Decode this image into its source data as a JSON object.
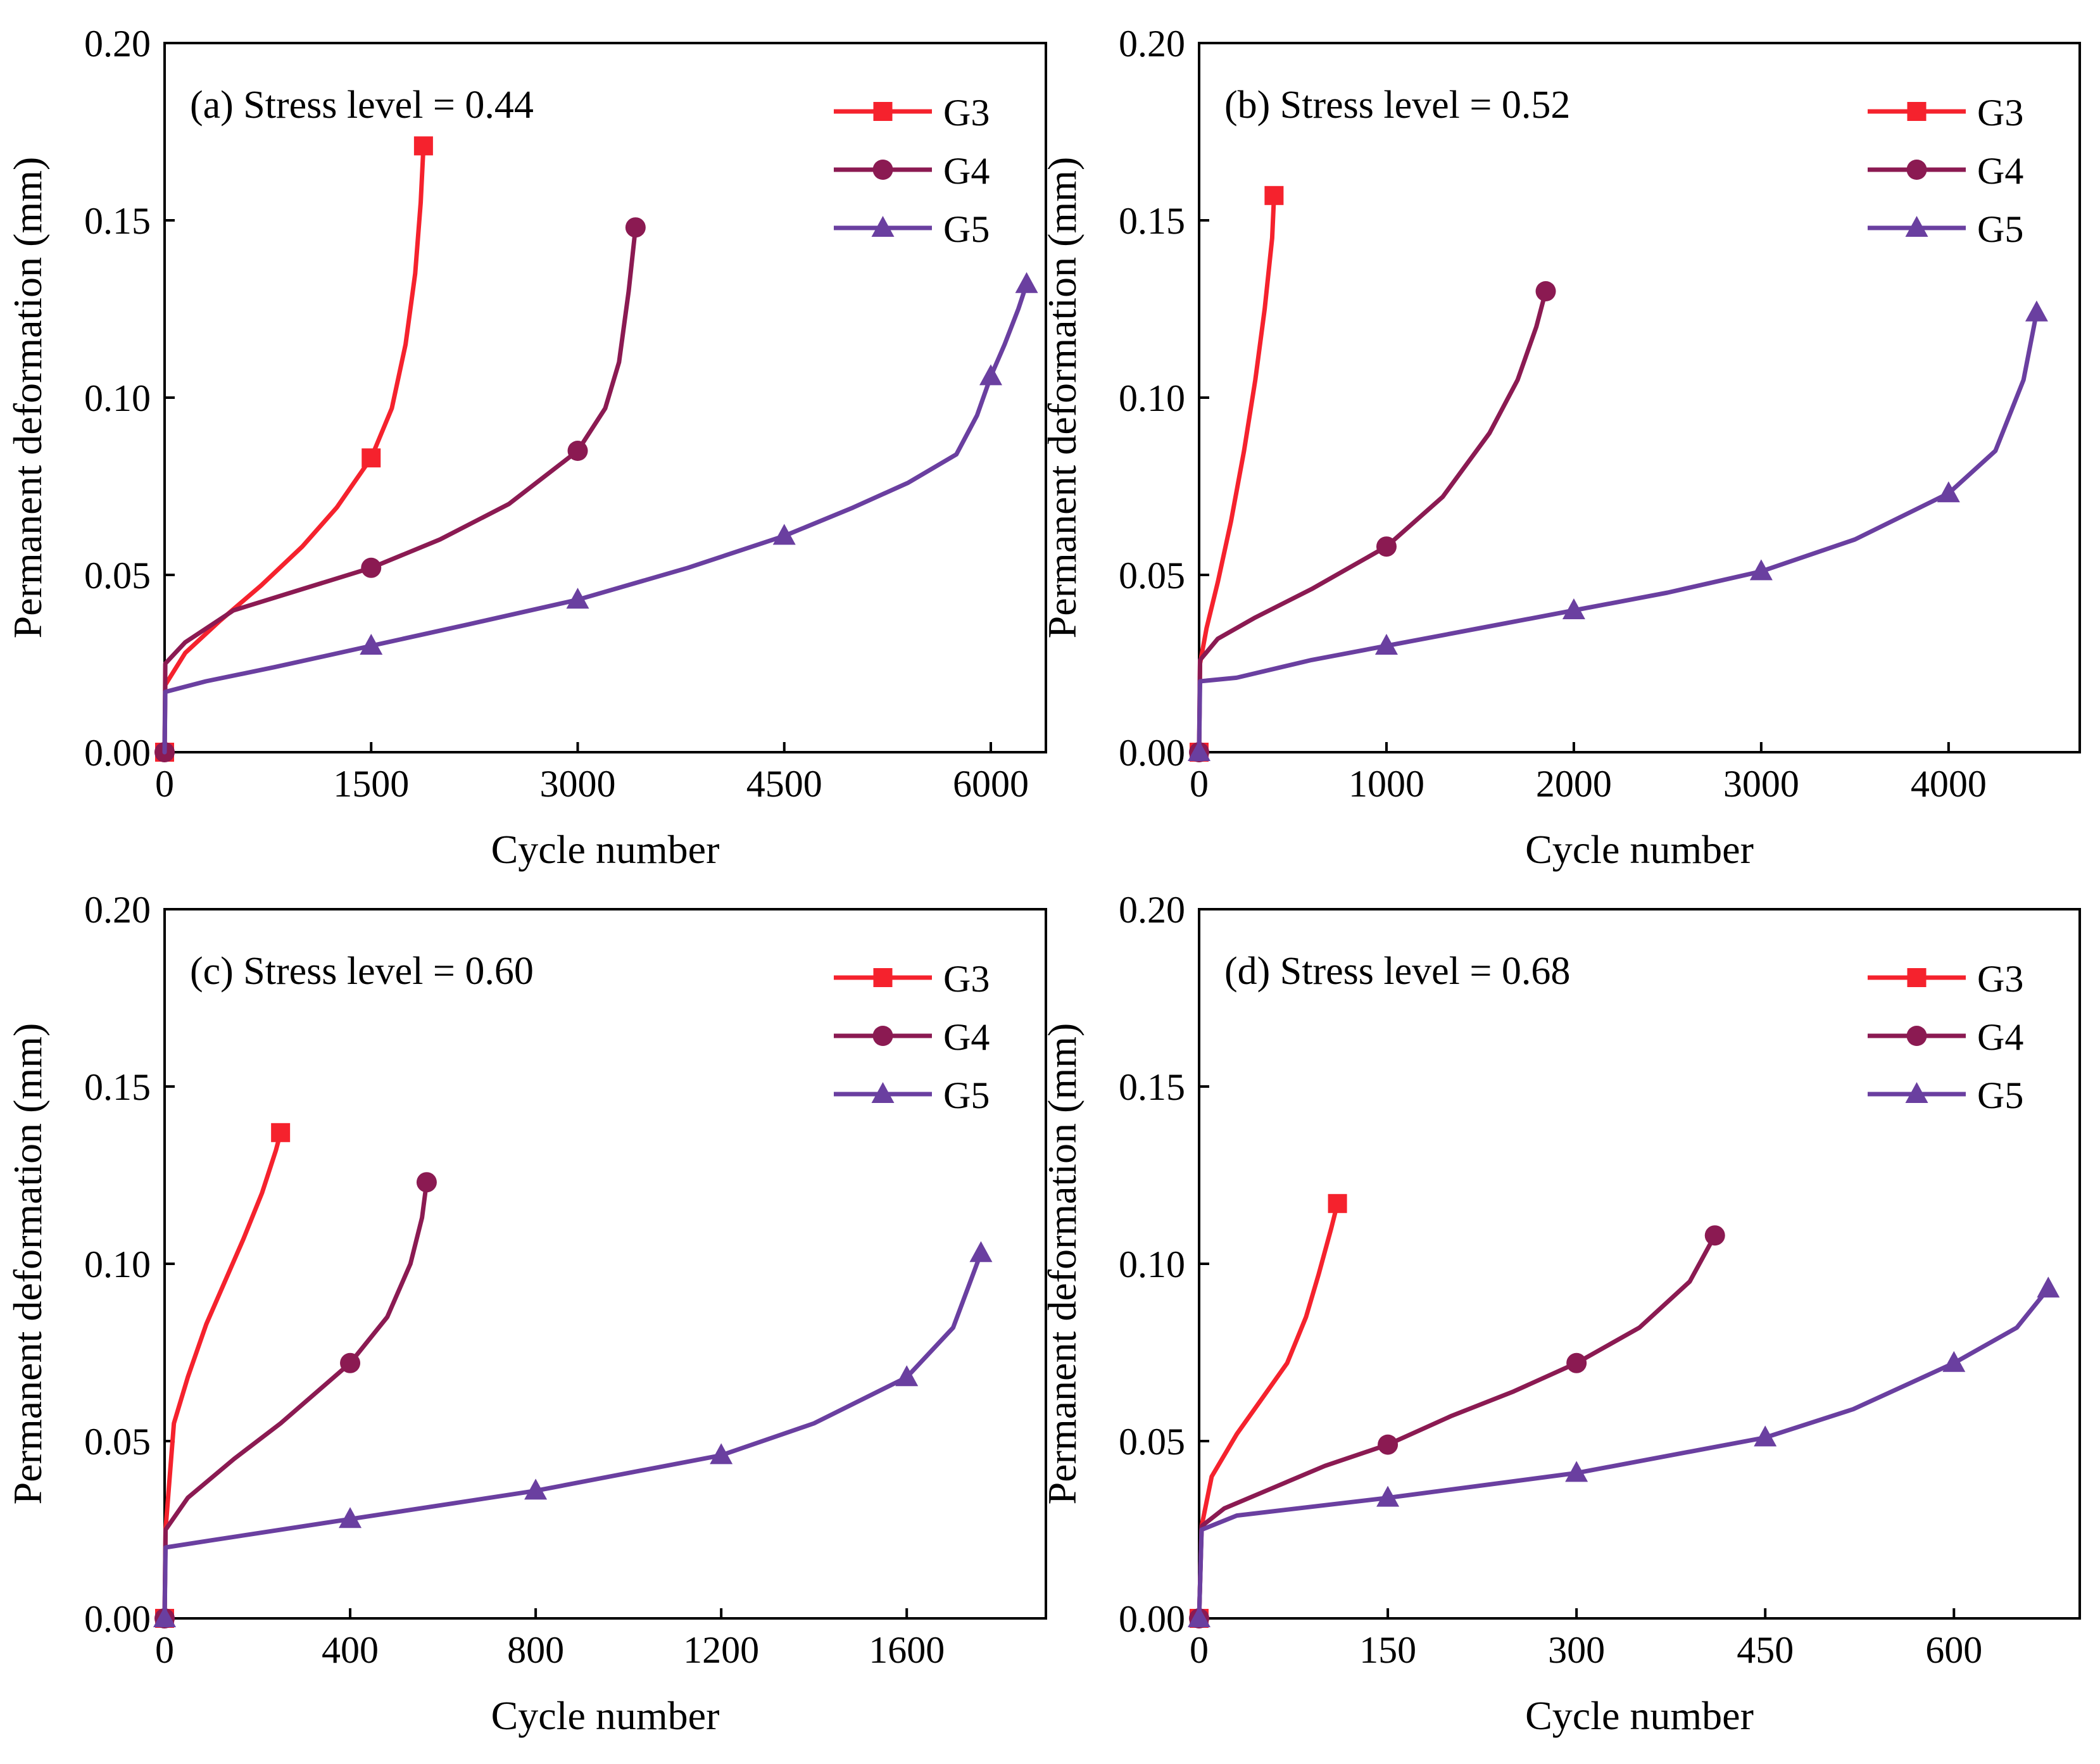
{
  "figure": {
    "series_colors": {
      "G3": "#f5222d",
      "G4": "#8b1a52",
      "G5": "#6a3fa0"
    },
    "series_markers": {
      "G3": "square",
      "G4": "circle",
      "G5": "triangle"
    }
  },
  "chart_data": [
    {
      "type": "line",
      "title": "(a) Stress level = 0.44",
      "xlabel": "Cycle number",
      "ylabel": "Permanent deformation (mm)",
      "xlim": [
        0,
        6400
      ],
      "ylim": [
        0,
        0.2
      ],
      "xticks": [
        0,
        1500,
        3000,
        4500,
        6000
      ],
      "xtick_labels": [
        "0",
        "1500",
        "3000",
        "4500",
        "6000"
      ],
      "yticks": [
        0,
        0.05,
        0.1,
        0.15,
        0.2
      ],
      "ytick_labels": [
        "0.00",
        "0.05",
        "0.10",
        "0.15",
        "0.20"
      ],
      "legend": "top-right",
      "series": [
        {
          "name": "G3",
          "x": [
            0,
            5,
            150,
            400,
            700,
            1000,
            1250,
            1500,
            1650,
            1750,
            1820,
            1860,
            1880
          ],
          "y": [
            0,
            0.019,
            0.028,
            0.037,
            0.047,
            0.058,
            0.069,
            0.083,
            0.097,
            0.115,
            0.135,
            0.155,
            0.171
          ],
          "markers_x": [
            0,
            1500,
            1880
          ],
          "markers_y": [
            0,
            0.083,
            0.171
          ]
        },
        {
          "name": "G4",
          "x": [
            0,
            5,
            150,
            500,
            1000,
            1500,
            2000,
            2500,
            3000,
            3200,
            3300,
            3370,
            3420
          ],
          "y": [
            0,
            0.025,
            0.031,
            0.04,
            0.046,
            0.052,
            0.06,
            0.07,
            0.085,
            0.097,
            0.11,
            0.13,
            0.148
          ],
          "markers_x": [
            0,
            1500,
            3000,
            3420
          ],
          "markers_y": [
            0,
            0.052,
            0.085,
            0.148
          ]
        },
        {
          "name": "G5",
          "x": [
            0,
            5,
            300,
            800,
            1500,
            2200,
            3000,
            3800,
            4500,
            5000,
            5400,
            5750,
            5900,
            6000,
            6100,
            6200,
            6260
          ],
          "y": [
            0,
            0.017,
            0.02,
            0.024,
            0.03,
            0.036,
            0.043,
            0.052,
            0.061,
            0.069,
            0.076,
            0.084,
            0.095,
            0.106,
            0.115,
            0.125,
            0.132
          ],
          "markers_x": [
            1500,
            3000,
            4500,
            6000,
            6260
          ],
          "markers_y": [
            0.03,
            0.043,
            0.061,
            0.106,
            0.132
          ]
        }
      ]
    },
    {
      "type": "line",
      "title": "(b) Stress level = 0.52",
      "xlabel": "Cycle number",
      "ylabel": "Permanent deformation (mm)",
      "xlim": [
        0,
        4700
      ],
      "ylim": [
        0,
        0.2
      ],
      "xticks": [
        0,
        1000,
        2000,
        3000,
        4000
      ],
      "xtick_labels": [
        "0",
        "1000",
        "2000",
        "3000",
        "4000"
      ],
      "yticks": [
        0,
        0.05,
        0.1,
        0.15,
        0.2
      ],
      "ytick_labels": [
        "0.00",
        "0.05",
        "0.10",
        "0.15",
        "0.20"
      ],
      "legend": "top-right",
      "series": [
        {
          "name": "G3",
          "x": [
            0,
            5,
            40,
            100,
            170,
            240,
            300,
            350,
            390,
            400
          ],
          "y": [
            0,
            0.025,
            0.035,
            0.048,
            0.065,
            0.085,
            0.105,
            0.125,
            0.145,
            0.157
          ],
          "markers_x": [
            0,
            400
          ],
          "markers_y": [
            0,
            0.157
          ]
        },
        {
          "name": "G4",
          "x": [
            0,
            5,
            100,
            300,
            600,
            1000,
            1300,
            1550,
            1700,
            1800,
            1850
          ],
          "y": [
            0,
            0.026,
            0.032,
            0.038,
            0.046,
            0.058,
            0.072,
            0.09,
            0.105,
            0.12,
            0.13
          ],
          "markers_x": [
            0,
            1000,
            1850
          ],
          "markers_y": [
            0,
            0.058,
            0.13
          ]
        },
        {
          "name": "G5",
          "x": [
            0,
            5,
            200,
            600,
            1000,
            1500,
            2000,
            2500,
            3000,
            3500,
            4000,
            4250,
            4400,
            4470
          ],
          "y": [
            0,
            0.02,
            0.021,
            0.026,
            0.03,
            0.035,
            0.04,
            0.045,
            0.051,
            0.06,
            0.073,
            0.085,
            0.105,
            0.124
          ],
          "markers_x": [
            0,
            1000,
            2000,
            3000,
            4000,
            4470
          ],
          "markers_y": [
            0,
            0.03,
            0.04,
            0.051,
            0.073,
            0.124
          ]
        }
      ]
    },
    {
      "type": "line",
      "title": "(c) Stress level = 0.60",
      "xlabel": "Cycle number",
      "ylabel": "Permanent deformation (mm)",
      "xlim": [
        0,
        1900
      ],
      "ylim": [
        0,
        0.2
      ],
      "xticks": [
        0,
        400,
        800,
        1200,
        1600
      ],
      "xtick_labels": [
        "0",
        "400",
        "800",
        "1200",
        "1600"
      ],
      "yticks": [
        0,
        0.05,
        0.1,
        0.15,
        0.2
      ],
      "ytick_labels": [
        "0.00",
        "0.05",
        "0.10",
        "0.15",
        "0.20"
      ],
      "legend": "top-right",
      "series": [
        {
          "name": "G3",
          "x": [
            0,
            2,
            20,
            50,
            90,
            130,
            170,
            210,
            240,
            250
          ],
          "y": [
            0,
            0.025,
            0.055,
            0.068,
            0.083,
            0.095,
            0.107,
            0.12,
            0.132,
            0.137
          ],
          "markers_x": [
            0,
            250
          ],
          "markers_y": [
            0,
            0.137
          ]
        },
        {
          "name": "G4",
          "x": [
            0,
            2,
            50,
            150,
            250,
            400,
            480,
            530,
            555,
            565
          ],
          "y": [
            0,
            0.025,
            0.034,
            0.045,
            0.055,
            0.072,
            0.085,
            0.1,
            0.113,
            0.123
          ],
          "markers_x": [
            0,
            400,
            565
          ],
          "markers_y": [
            0,
            0.072,
            0.123
          ]
        },
        {
          "name": "G5",
          "x": [
            0,
            2,
            100,
            400,
            800,
            1200,
            1400,
            1600,
            1700,
            1760
          ],
          "y": [
            0,
            0.02,
            0.022,
            0.028,
            0.036,
            0.046,
            0.055,
            0.068,
            0.082,
            0.103
          ],
          "markers_x": [
            0,
            400,
            800,
            1200,
            1600,
            1760
          ],
          "markers_y": [
            0,
            0.028,
            0.036,
            0.046,
            0.068,
            0.103
          ]
        }
      ]
    },
    {
      "type": "line",
      "title": "(d) Stress level = 0.68",
      "xlabel": "Cycle number",
      "ylabel": "Permanent deformation (mm)",
      "xlim": [
        0,
        700
      ],
      "ylim": [
        0,
        0.2
      ],
      "xticks": [
        0,
        150,
        300,
        450,
        600
      ],
      "xtick_labels": [
        "0",
        "150",
        "300",
        "450",
        "600"
      ],
      "yticks": [
        0,
        0.05,
        0.1,
        0.15,
        0.2
      ],
      "ytick_labels": [
        "0.00",
        "0.05",
        "0.10",
        "0.15",
        "0.20"
      ],
      "legend": "top-right",
      "series": [
        {
          "name": "G3",
          "x": [
            0,
            2,
            10,
            30,
            50,
            70,
            85,
            95,
            105,
            110
          ],
          "y": [
            0,
            0.026,
            0.04,
            0.052,
            0.062,
            0.072,
            0.085,
            0.097,
            0.11,
            0.117
          ],
          "markers_x": [
            0,
            110
          ],
          "markers_y": [
            0,
            0.117
          ]
        },
        {
          "name": "G4",
          "x": [
            0,
            2,
            20,
            60,
            100,
            150,
            200,
            250,
            300,
            350,
            390,
            410
          ],
          "y": [
            0,
            0.026,
            0.031,
            0.037,
            0.043,
            0.049,
            0.057,
            0.064,
            0.072,
            0.082,
            0.095,
            0.108
          ],
          "markers_x": [
            0,
            150,
            300,
            410
          ],
          "markers_y": [
            0,
            0.049,
            0.072,
            0.108
          ]
        },
        {
          "name": "G5",
          "x": [
            0,
            2,
            30,
            150,
            300,
            450,
            520,
            600,
            650,
            675
          ],
          "y": [
            0,
            0.025,
            0.029,
            0.034,
            0.041,
            0.051,
            0.059,
            0.072,
            0.082,
            0.093
          ],
          "markers_x": [
            0,
            150,
            300,
            450,
            600,
            675
          ],
          "markers_y": [
            0,
            0.034,
            0.041,
            0.051,
            0.072,
            0.093
          ]
        }
      ]
    }
  ]
}
